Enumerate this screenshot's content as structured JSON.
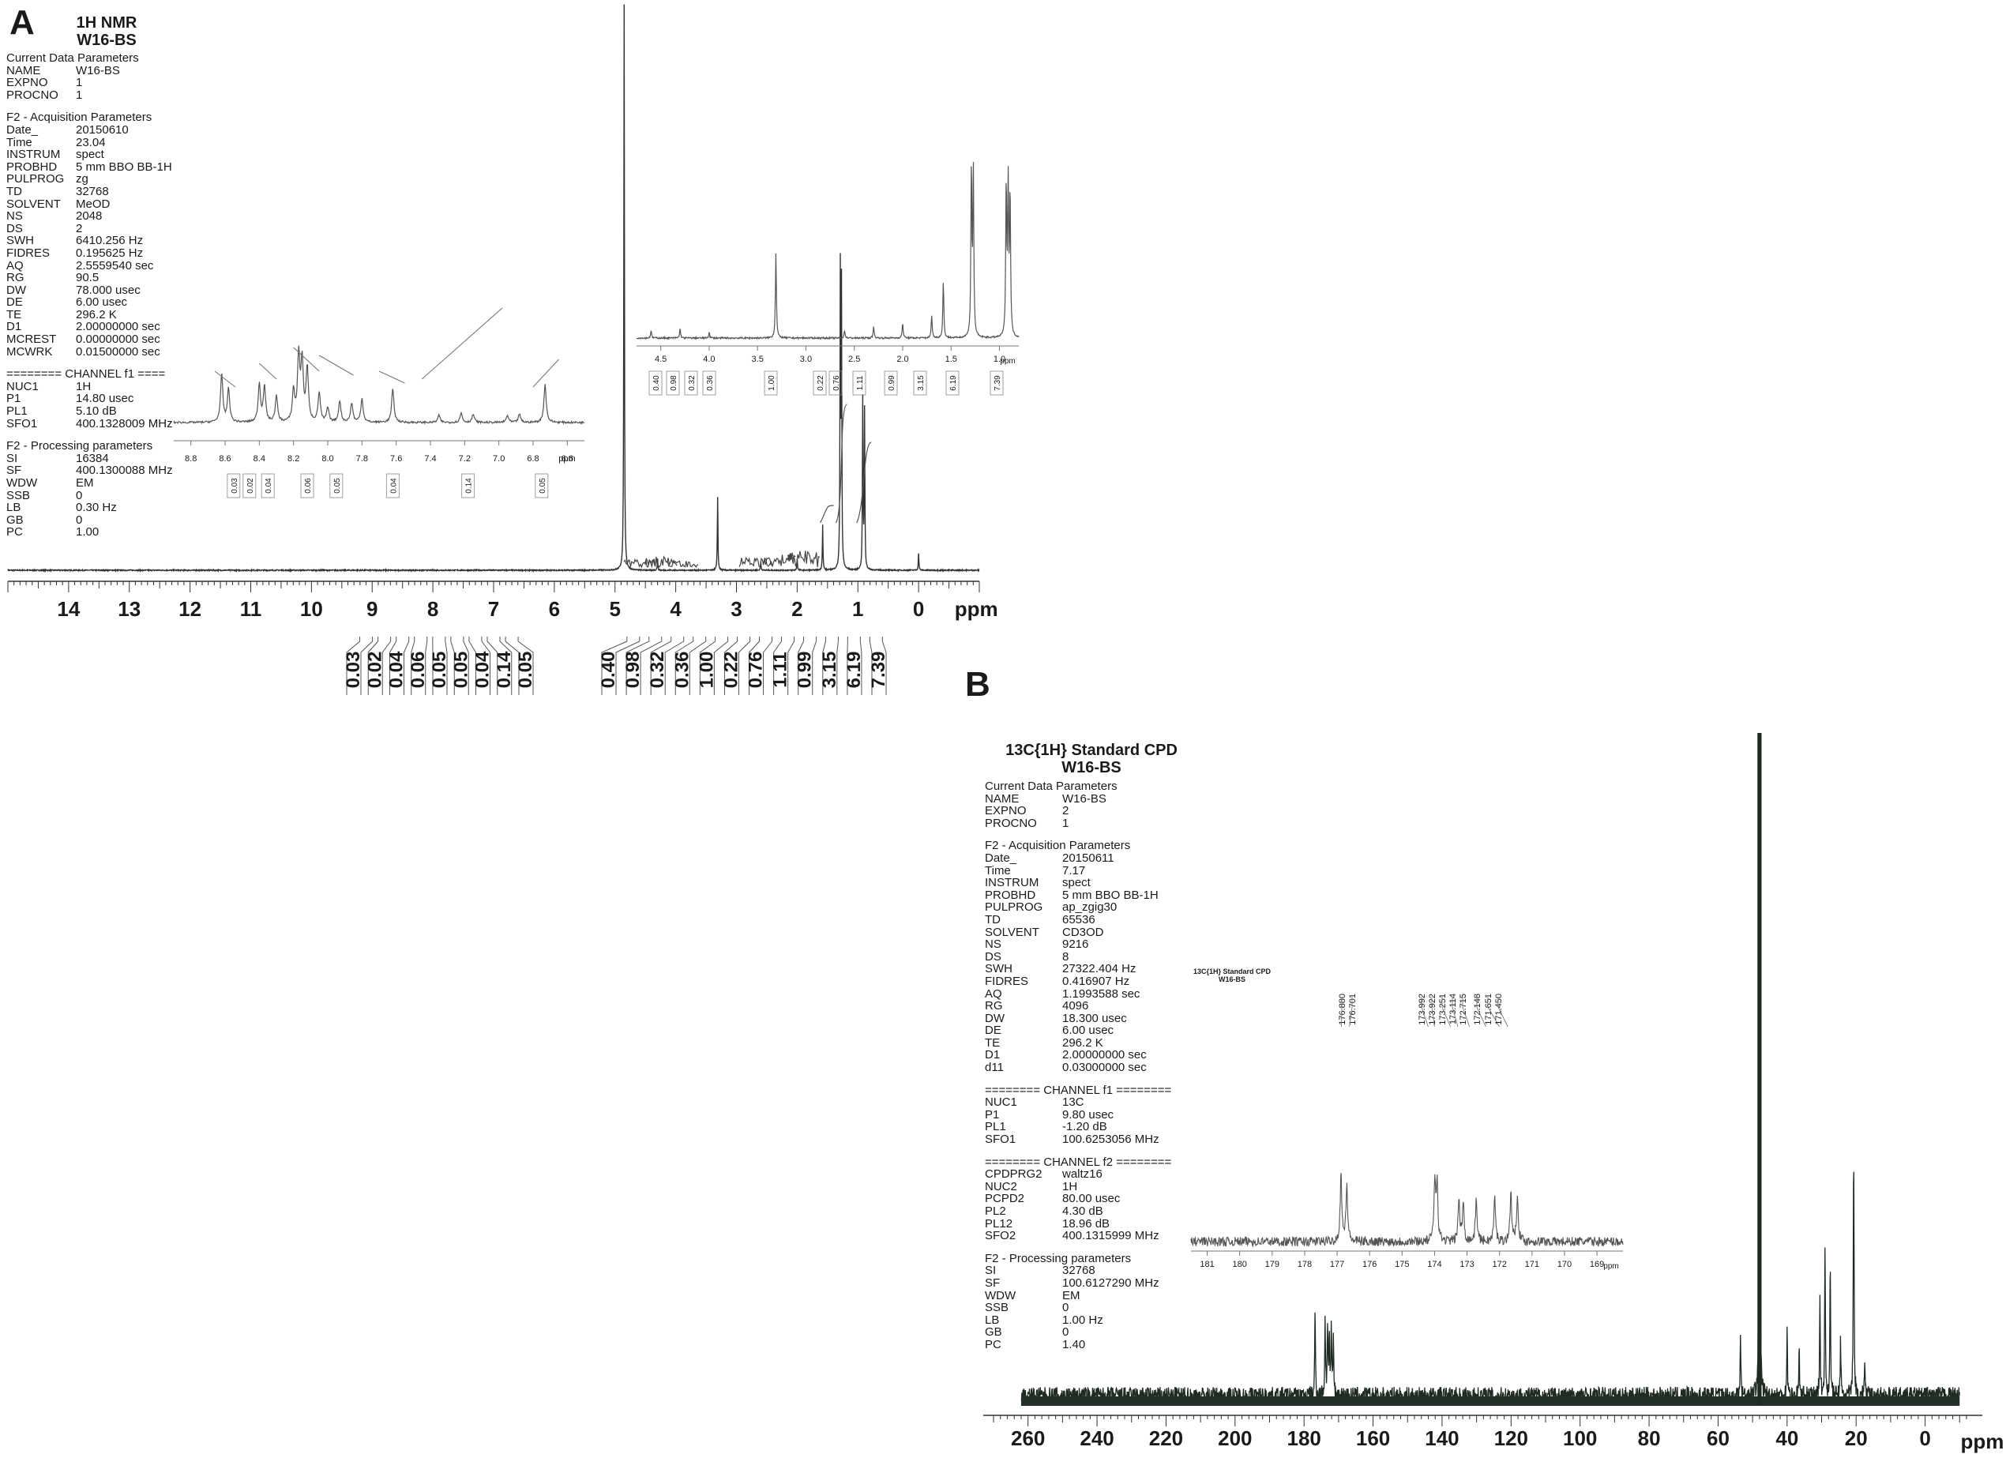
{
  "panel_a": {
    "letter": "A",
    "title": [
      "1H NMR",
      "W16-BS"
    ],
    "params": [
      {
        "section": "Current Data Parameters",
        "rows": [
          [
            "NAME",
            "W16-BS"
          ],
          [
            "EXPNO",
            "1"
          ],
          [
            "PROCNO",
            "1"
          ]
        ]
      },
      {
        "section": "F2 - Acquisition Parameters",
        "rows": [
          [
            "Date_",
            "20150610"
          ],
          [
            "Time",
            "23.04"
          ],
          [
            "INSTRUM",
            "spect"
          ],
          [
            "PROBHD",
            "5 mm BBO BB-1H"
          ],
          [
            "PULPROG",
            "zg"
          ],
          [
            "TD",
            "32768"
          ],
          [
            "SOLVENT",
            "MeOD"
          ],
          [
            "NS",
            "2048"
          ],
          [
            "DS",
            "2"
          ],
          [
            "SWH",
            "6410.256 Hz"
          ],
          [
            "FIDRES",
            "0.195625 Hz"
          ],
          [
            "AQ",
            "2.5559540 sec"
          ],
          [
            "RG",
            "90.5"
          ],
          [
            "DW",
            "78.000 usec"
          ],
          [
            "DE",
            "6.00 usec"
          ],
          [
            "TE",
            "296.2 K"
          ],
          [
            "D1",
            "2.00000000 sec"
          ],
          [
            "MCREST",
            "0.00000000 sec"
          ],
          [
            "MCWRK",
            "0.01500000 sec"
          ]
        ]
      },
      {
        "section": "======== CHANNEL f1 ====",
        "rows": [
          [
            "NUC1",
            "1H"
          ],
          [
            "P1",
            "14.80 usec"
          ],
          [
            "PL1",
            "5.10 dB"
          ],
          [
            "SFO1",
            "400.1328009 MHz"
          ]
        ]
      },
      {
        "section": "F2 - Processing parameters",
        "rows": [
          [
            "SI",
            "16384"
          ],
          [
            "SF",
            "400.1300088 MHz"
          ],
          [
            "WDW",
            "EM"
          ],
          [
            "SSB",
            "0"
          ],
          [
            "LB",
            "0.30 Hz"
          ],
          [
            "GB",
            "0"
          ],
          [
            "PC",
            "1.00"
          ]
        ]
      }
    ]
  },
  "panel_b": {
    "letter": "B",
    "title": [
      "13C{1H} Standard CPD",
      "W16-BS"
    ],
    "params": [
      {
        "section": "Current Data Parameters",
        "rows": [
          [
            "NAME",
            "W16-BS"
          ],
          [
            "EXPNO",
            "2"
          ],
          [
            "PROCNO",
            "1"
          ]
        ]
      },
      {
        "section": "F2 - Acquisition Parameters",
        "rows": [
          [
            "Date_",
            "20150611"
          ],
          [
            "Time",
            "7.17"
          ],
          [
            "INSTRUM",
            "spect"
          ],
          [
            "PROBHD",
            "5 mm BBO BB-1H"
          ],
          [
            "PULPROG",
            "ap_zgig30"
          ],
          [
            "TD",
            "65536"
          ],
          [
            "SOLVENT",
            "CD3OD"
          ],
          [
            "NS",
            "9216"
          ],
          [
            "DS",
            "8"
          ],
          [
            "SWH",
            "27322.404 Hz"
          ],
          [
            "FIDRES",
            "0.416907 Hz"
          ],
          [
            "AQ",
            "1.1993588 sec"
          ],
          [
            "RG",
            "4096"
          ],
          [
            "DW",
            "18.300 usec"
          ],
          [
            "DE",
            "6.00 usec"
          ],
          [
            "TE",
            "296.2 K"
          ],
          [
            "D1",
            "2.00000000 sec"
          ],
          [
            "d11",
            "0.03000000 sec"
          ]
        ]
      },
      {
        "section": "======== CHANNEL f1 ========",
        "rows": [
          [
            "NUC1",
            "13C"
          ],
          [
            "P1",
            "9.80 usec"
          ],
          [
            "PL1",
            "-1.20 dB"
          ],
          [
            "SFO1",
            "100.6253056 MHz"
          ]
        ]
      },
      {
        "section": "======== CHANNEL f2 ========",
        "rows": [
          [
            "CPDPRG2",
            "waltz16"
          ],
          [
            "NUC2",
            "1H"
          ],
          [
            "PCPD2",
            "80.00 usec"
          ],
          [
            "PL2",
            "4.30 dB"
          ],
          [
            "PL12",
            "18.96 dB"
          ],
          [
            "SFO2",
            "400.1315999 MHz"
          ]
        ]
      },
      {
        "section": "F2 - Processing parameters",
        "rows": [
          [
            "SI",
            "32768"
          ],
          [
            "SF",
            "100.6127290 MHz"
          ],
          [
            "WDW",
            "EM"
          ],
          [
            "SSB",
            "0"
          ],
          [
            "LB",
            "1.00 Hz"
          ],
          [
            "GB",
            "0"
          ],
          [
            "PC",
            "1.40"
          ]
        ]
      }
    ]
  },
  "chart_data": [
    {
      "type": "line",
      "spectrum": "1H NMR",
      "xlabel": "ppm",
      "xlim": [
        15,
        -1
      ],
      "x_ticks": [
        14,
        13,
        12,
        11,
        10,
        9,
        8,
        7,
        6,
        5,
        4,
        3,
        2,
        1,
        0
      ],
      "peaks": [
        {
          "x": 4.85,
          "y": 1.0
        },
        {
          "x": 3.31,
          "y": 0.13
        },
        {
          "x": 1.29,
          "y": 0.52
        },
        {
          "x": 1.27,
          "y": 0.49
        },
        {
          "x": 0.92,
          "y": 0.3
        },
        {
          "x": 0.89,
          "y": 0.28
        },
        {
          "x": 1.58,
          "y": 0.08
        },
        {
          "x": 0.0,
          "y": 0.03
        },
        {
          "x": 4.3,
          "y": 0.02
        },
        {
          "x": 2.6,
          "y": 0.015
        },
        {
          "x": 2.0,
          "y": 0.02
        }
      ],
      "integrals": [
        "0.03",
        "0.02",
        "0.04",
        "0.06",
        "0.05",
        "0.05",
        "0.04",
        "0.14",
        "0.05",
        "0.40",
        "0.98",
        "0.32",
        "0.36",
        "1.00",
        "0.22",
        "0.76",
        "1.11",
        "0.99",
        "3.15",
        "6.19",
        "7.39"
      ],
      "insets": [
        {
          "xlabel": "ppm",
          "x_ticks": [
            8.8,
            8.6,
            8.4,
            8.2,
            8.0,
            7.8,
            7.6,
            7.4,
            7.2,
            7.0,
            6.8,
            6.6
          ],
          "integrals": [
            "0.03",
            "0.02",
            "0.04",
            "0.06",
            "0.05",
            "0.04",
            "0.14",
            "0.05"
          ]
        },
        {
          "xlabel": "ppm",
          "x_ticks": [
            4.5,
            4.0,
            3.5,
            3.0,
            2.5,
            2.0,
            1.5,
            1.0
          ],
          "integrals": [
            "0.40",
            "0.98",
            "0.32",
            "0.36",
            "1.00",
            "0.22",
            "0.76",
            "1.11",
            "0.99",
            "3.15",
            "6.19",
            "7.39"
          ]
        }
      ]
    },
    {
      "type": "line",
      "spectrum": "13C{1H} Standard CPD",
      "xlabel": "ppm",
      "xlim": [
        270,
        -12
      ],
      "x_ticks": [
        260,
        240,
        220,
        200,
        180,
        160,
        140,
        120,
        100,
        80,
        60,
        40,
        20,
        0
      ],
      "peaks": [
        {
          "x": 48.0,
          "y": 1.0
        },
        {
          "x": 20.7,
          "y": 0.4
        },
        {
          "x": 29.0,
          "y": 0.22
        },
        {
          "x": 27.5,
          "y": 0.2
        },
        {
          "x": 30.5,
          "y": 0.15
        },
        {
          "x": 176.8,
          "y": 0.13
        },
        {
          "x": 173.9,
          "y": 0.12
        },
        {
          "x": 173.2,
          "y": 0.11
        },
        {
          "x": 172.7,
          "y": 0.1
        },
        {
          "x": 172.1,
          "y": 0.1
        },
        {
          "x": 171.5,
          "y": 0.09
        },
        {
          "x": 53.5,
          "y": 0.09
        },
        {
          "x": 40.0,
          "y": 0.1
        },
        {
          "x": 36.5,
          "y": 0.07
        },
        {
          "x": 24.5,
          "y": 0.08
        },
        {
          "x": 17.5,
          "y": 0.06
        }
      ],
      "inset": {
        "title": [
          "13C{1H} Standard CPD",
          "W16-BS"
        ],
        "xlabel": "ppm",
        "x_ticks": [
          181,
          180,
          179,
          178,
          177,
          176,
          175,
          174,
          173,
          172,
          171,
          170,
          169
        ],
        "peak_labels": [
          "176.880",
          "176.701",
          "173.992",
          "173.922",
          "173.251",
          "173.114",
          "172.715",
          "172.148",
          "171.651",
          "171.450"
        ]
      }
    }
  ]
}
